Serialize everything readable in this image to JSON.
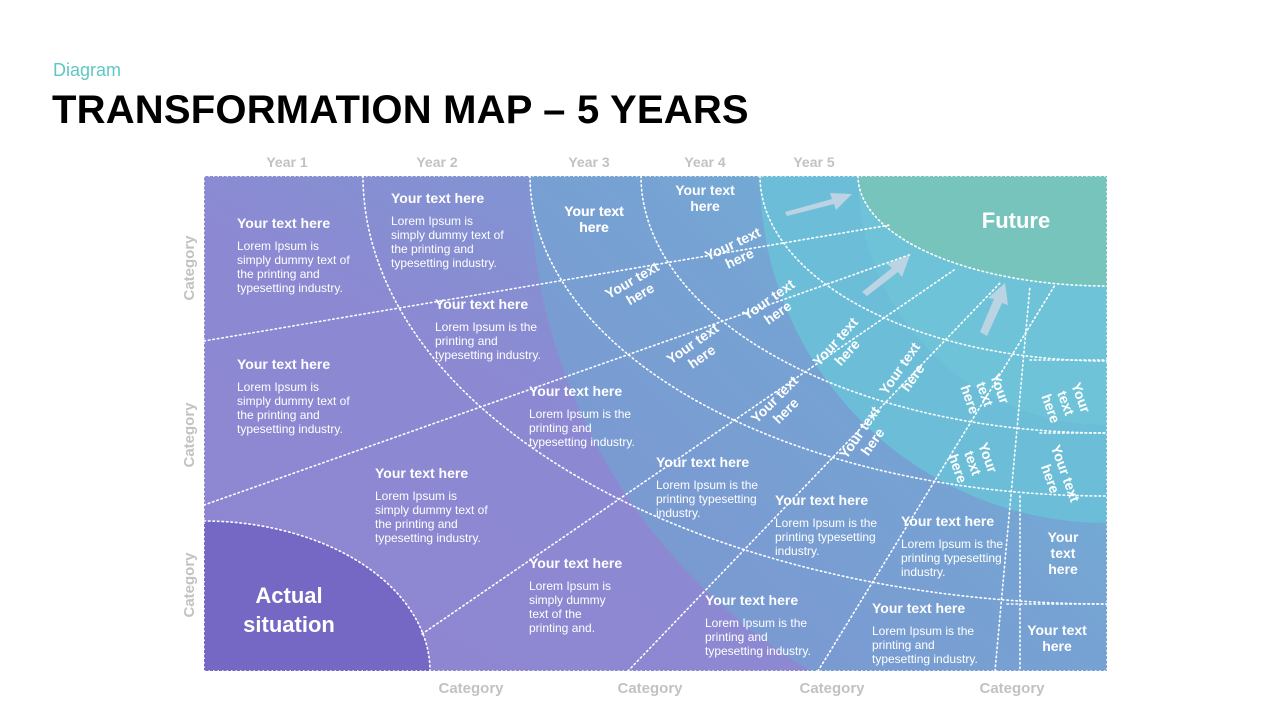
{
  "header": {
    "subtitle": "Diagram",
    "title": "TRANSFORMATION MAP – 5 YEARS"
  },
  "years": [
    "Year 1",
    "Year 2",
    "Year 3",
    "Year 4",
    "Year 5"
  ],
  "left_categories": [
    "Category",
    "Category",
    "Category"
  ],
  "bottom_categories": [
    "Category",
    "Category",
    "Category",
    "Category"
  ],
  "actual_situation": {
    "line1": "Actual",
    "line2": "situation"
  },
  "future": "Future",
  "colors": {
    "purple": "#8f85d0",
    "mid_blue": "#7e97d2",
    "teal": "#6dc3da",
    "future": "#76c4bc",
    "actual": "#7468c4",
    "label_gray": "#c2c2c2"
  },
  "blocks": [
    {
      "heading": "Your text here",
      "lines": [
        "Lorem Ipsum is",
        "simply dummy text of",
        "the printing and",
        "typesetting industry."
      ]
    },
    {
      "heading": "Your text here",
      "lines": [
        "Lorem Ipsum is",
        "simply dummy text of",
        "the printing and",
        "typesetting industry."
      ]
    },
    {
      "heading": "Your text here",
      "lines": [
        "Lorem Ipsum is",
        "simply dummy text of",
        "the printing and",
        "typesetting industry."
      ]
    },
    {
      "heading": "Your text here",
      "lines": [
        "Lorem Ipsum is the",
        "printing and",
        "typesetting industry."
      ]
    },
    {
      "heading": "Your text here",
      "lines": [
        "Lorem Ipsum is",
        "simply dummy text of",
        "the printing and",
        "typesetting industry."
      ]
    },
    {
      "heading": "Your text here",
      "lines": [
        "Lorem Ipsum is the",
        "printing and",
        "typesetting industry."
      ]
    },
    {
      "heading": "Your text here",
      "lines": [
        "Lorem Ipsum is",
        "simply dummy",
        "text  of the",
        "printing and."
      ]
    },
    {
      "heading": "Your text here",
      "lines": [
        "Lorem Ipsum is the",
        "printing typesetting",
        "industry."
      ]
    },
    {
      "heading": "Your text here",
      "lines": [
        "Lorem Ipsum is the",
        "printing typesetting",
        "industry."
      ]
    },
    {
      "heading": "Your text here",
      "lines": [
        "Lorem Ipsum is the",
        "printing typesetting",
        "industry."
      ]
    },
    {
      "heading": "Your text here",
      "lines": [
        "Lorem Ipsum is the",
        "printing and",
        "typesetting industry."
      ]
    },
    {
      "heading": "Your text here",
      "lines": [
        "Lorem Ipsum is the",
        "printing and",
        "typesetting industry."
      ]
    }
  ],
  "ring_cells": [
    [
      "Your text",
      "here"
    ],
    [
      "Your text",
      "here"
    ],
    [
      "Your text",
      "here"
    ],
    [
      "Your text",
      "here"
    ],
    [
      "Your text",
      "here"
    ],
    [
      "Your text",
      "here"
    ],
    [
      "Your text",
      "here"
    ],
    [
      "Your text",
      "here"
    ],
    [
      "Your text",
      "here"
    ],
    [
      "Your text",
      "here"
    ],
    [
      "Your text",
      "here"
    ],
    [
      "Your",
      "text",
      "here"
    ],
    [
      "Your",
      "text",
      "here"
    ],
    [
      "Your",
      "text",
      "here"
    ],
    [
      "Your",
      "text",
      "here"
    ],
    [
      "Your text",
      "here"
    ],
    [
      "Your text",
      "here"
    ]
  ]
}
